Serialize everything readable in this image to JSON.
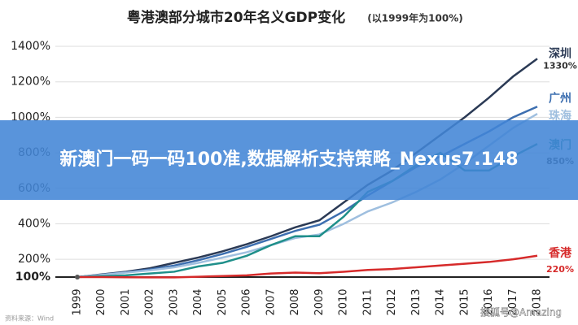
{
  "chart_data": {
    "type": "line",
    "title": "粤港澳部分城市20年名义GDP变化",
    "subtitle": "(以1999年为100%)",
    "categories": [
      "1999",
      "2000",
      "2001",
      "2002",
      "2003",
      "2004",
      "2005",
      "2006",
      "2007",
      "2008",
      "2009",
      "2010",
      "2011",
      "2012",
      "2013",
      "2014",
      "2015",
      "2016",
      "2017",
      "2018"
    ],
    "series": [
      {
        "name": "深圳",
        "color": "#2b3a55",
        "values": [
          100,
          115,
          130,
          150,
          180,
          210,
          245,
          285,
          330,
          380,
          420,
          520,
          620,
          700,
          800,
          900,
          1000,
          1110,
          1230,
          1330
        ],
        "value_labels": [
          null,
          null,
          null,
          null,
          null,
          null,
          null,
          null,
          null,
          null,
          null,
          null,
          null,
          null,
          null,
          null,
          null,
          null,
          null,
          "1330%"
        ]
      },
      {
        "name": "广州",
        "color": "#3d6fb0",
        "values": [
          100,
          113,
          127,
          143,
          165,
          195,
          230,
          270,
          315,
          360,
          395,
          470,
          560,
          640,
          720,
          780,
          850,
          920,
          1000,
          1060
        ]
      },
      {
        "name": "珠海",
        "color": "#9fbfdf",
        "values": [
          100,
          112,
          125,
          138,
          155,
          180,
          210,
          240,
          280,
          320,
          340,
          400,
          470,
          520,
          580,
          650,
          740,
          840,
          940,
          1020
        ]
      },
      {
        "name": "澳门",
        "color": "#1f8f8a",
        "values": [
          100,
          105,
          110,
          120,
          130,
          160,
          180,
          220,
          280,
          330,
          330,
          440,
          580,
          640,
          730,
          800,
          700,
          700,
          780,
          850
        ],
        "value_labels": [
          null,
          null,
          null,
          null,
          null,
          null,
          null,
          null,
          null,
          null,
          null,
          null,
          null,
          null,
          null,
          null,
          null,
          null,
          null,
          "850%"
        ]
      },
      {
        "name": "香港",
        "color": "#d62a2a",
        "values": [
          100,
          100,
          99,
          98,
          98,
          102,
          106,
          110,
          120,
          125,
          122,
          130,
          140,
          145,
          155,
          165,
          175,
          185,
          200,
          220
        ],
        "value_labels": [
          null,
          null,
          null,
          null,
          null,
          null,
          null,
          null,
          null,
          null,
          null,
          null,
          null,
          null,
          null,
          null,
          null,
          null,
          null,
          "220%"
        ]
      }
    ],
    "ylim": [
      100,
      1400
    ],
    "yticks": [
      {
        "value": 100,
        "label": "100%"
      },
      {
        "value": 200,
        "label": "200%"
      },
      {
        "value": 400,
        "label": "400%"
      },
      {
        "value": 600,
        "label": "600%"
      },
      {
        "value": 800,
        "label": "800%"
      },
      {
        "value": 1000,
        "label": "1000%"
      },
      {
        "value": 1200,
        "label": "1200%"
      },
      {
        "value": 1400,
        "label": "1400%"
      }
    ],
    "grid": true
  },
  "banner": "新澳门一码一码100准,数据解析支持策略_Nexus7.148",
  "source": "资料来源：Wind",
  "watermark": "搜狐号@Amazing"
}
